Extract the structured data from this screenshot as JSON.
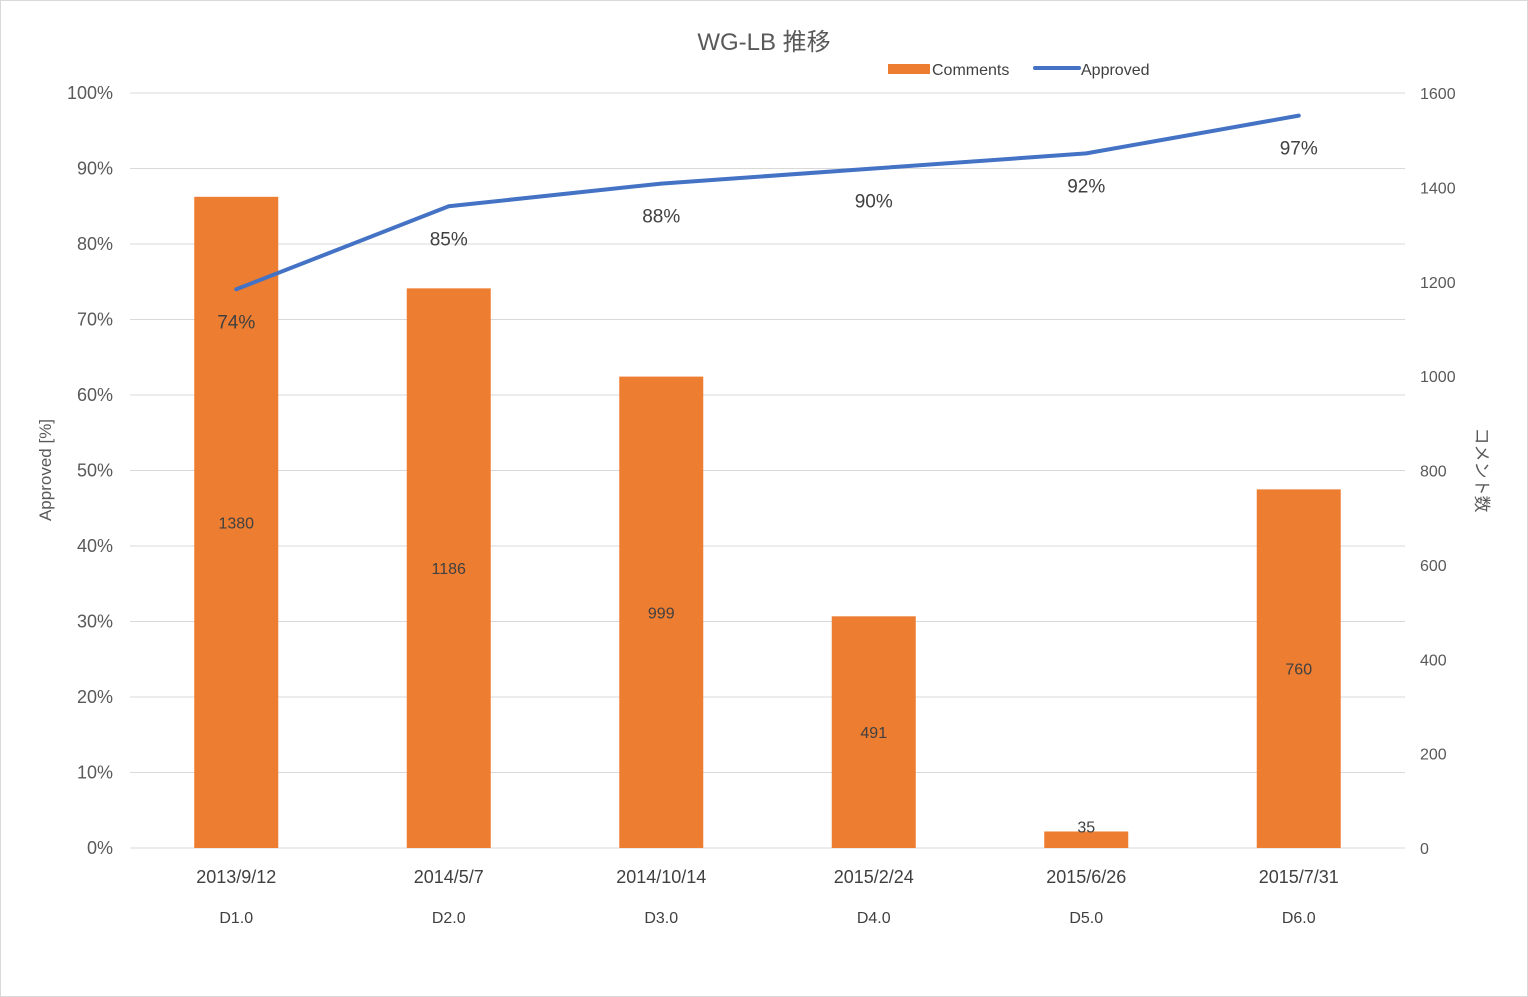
{
  "chart_data": {
    "type": "bar",
    "title": "WG-LB 推移",
    "categories": [
      "2013/9/12",
      "2014/5/7",
      "2014/10/14",
      "2015/2/24",
      "2015/6/26",
      "2015/7/31"
    ],
    "sub_categories": [
      "D1.0",
      "D2.0",
      "D3.0",
      "D4.0",
      "D5.0",
      "D6.0"
    ],
    "series": [
      {
        "name": "Comments",
        "type": "bar",
        "axis": "right",
        "color": "#ED7D31",
        "values": [
          1380,
          1186,
          999,
          491,
          35,
          760
        ]
      },
      {
        "name": "Approved",
        "type": "line",
        "axis": "left",
        "color": "#4472C4",
        "values": [
          74,
          85,
          88,
          90,
          92,
          97
        ],
        "labels": [
          "74%",
          "85%",
          "88%",
          "90%",
          "92%",
          "97%"
        ]
      }
    ],
    "ylabel": "Approved [%]",
    "y2label": "コメント数",
    "ylim": [
      0,
      100
    ],
    "y2lim": [
      0,
      1600
    ],
    "yticks": [
      "0%",
      "10%",
      "20%",
      "30%",
      "40%",
      "50%",
      "60%",
      "70%",
      "80%",
      "90%",
      "100%"
    ],
    "y2ticks": [
      "0",
      "200",
      "400",
      "600",
      "800",
      "1000",
      "1200",
      "1400",
      "1600"
    ],
    "grid": true,
    "legend_position": "top"
  }
}
